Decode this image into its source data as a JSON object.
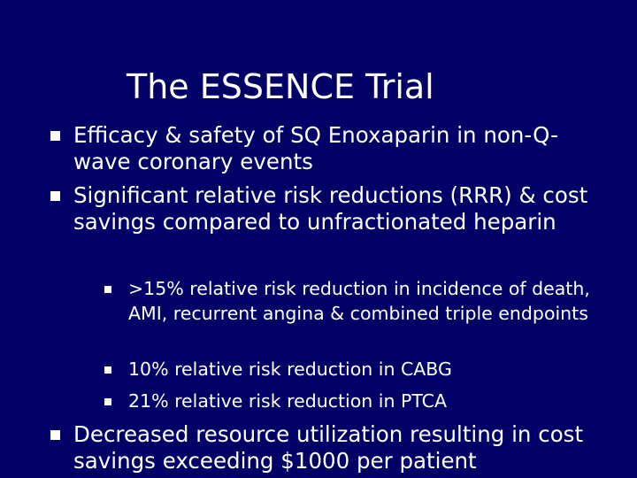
{
  "slide": {
    "title": "The ESSENCE Trial",
    "bullets": [
      {
        "text": "Efficacy & safety of SQ Enoxaparin in non-Q-wave coronary events"
      },
      {
        "text": "Significant relative risk reductions (RRR) & cost savings compared to unfractionated heparin"
      },
      {
        "text": "Decreased resource utilization resulting in cost savings exceeding $1000 per patient"
      }
    ],
    "sub_bullets": [
      {
        "text": ">15% relative risk reduction in incidence of death, AMI, recurrent angina & combined triple endpoints"
      },
      {
        "text": "10% relative risk reduction in CABG"
      },
      {
        "text": "21% relative risk reduction in PTCA"
      }
    ]
  },
  "colors": {
    "background": "#000066",
    "text": "#ffffff"
  },
  "icons": {
    "bullet": "square-bullet-icon"
  }
}
